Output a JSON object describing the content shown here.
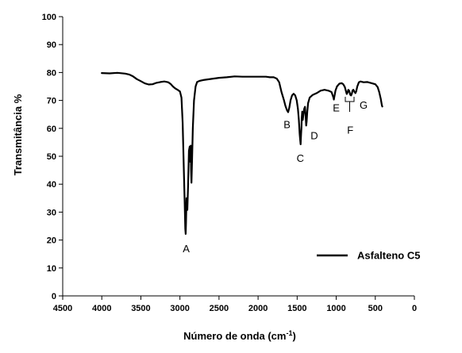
{
  "chart_data": {
    "type": "line",
    "xlabel": "Número de onda (cm",
    "xlabel_sup": "-1",
    "xlabel_end": ")",
    "ylabel": "Transmitância %",
    "xlim": [
      4500,
      0
    ],
    "ylim": [
      0,
      100
    ],
    "x_ticks": [
      "4500",
      "4000",
      "3500",
      "3000",
      "2500",
      "2000",
      "1500",
      "1000",
      "500",
      "0"
    ],
    "x_tick_values": [
      4500,
      4000,
      3500,
      3000,
      2500,
      2000,
      1500,
      1000,
      500,
      0
    ],
    "y_ticks": [
      "0",
      "10",
      "20",
      "30",
      "40",
      "50",
      "60",
      "70",
      "80",
      "90",
      "100"
    ],
    "y_tick_values": [
      0,
      10,
      20,
      30,
      40,
      50,
      60,
      70,
      80,
      90,
      100
    ],
    "series": [
      {
        "name": "Asfalteno C5",
        "color": "#000000",
        "points": [
          [
            4000,
            79.8
          ],
          [
            3900,
            79.7
          ],
          [
            3800,
            79.9
          ],
          [
            3700,
            79.6
          ],
          [
            3650,
            79.3
          ],
          [
            3600,
            78.6
          ],
          [
            3550,
            77.6
          ],
          [
            3500,
            76.9
          ],
          [
            3450,
            76.1
          ],
          [
            3400,
            75.7
          ],
          [
            3350,
            75.8
          ],
          [
            3300,
            76.3
          ],
          [
            3250,
            76.6
          ],
          [
            3200,
            76.8
          ],
          [
            3150,
            76.5
          ],
          [
            3120,
            75.9
          ],
          [
            3090,
            75.0
          ],
          [
            3060,
            74.3
          ],
          [
            3030,
            73.8
          ],
          [
            3000,
            73.2
          ],
          [
            2980,
            71.0
          ],
          [
            2965,
            62.0
          ],
          [
            2950,
            45.0
          ],
          [
            2940,
            34.0
          ],
          [
            2932,
            24.0
          ],
          [
            2927,
            22.2
          ],
          [
            2922,
            26.0
          ],
          [
            2915,
            35.0
          ],
          [
            2910,
            32.0
          ],
          [
            2905,
            30.8
          ],
          [
            2895,
            40.0
          ],
          [
            2885,
            52.0
          ],
          [
            2875,
            53.5
          ],
          [
            2868,
            48.0
          ],
          [
            2862,
            53.8
          ],
          [
            2857,
            45.0
          ],
          [
            2852,
            40.5
          ],
          [
            2845,
            48.0
          ],
          [
            2835,
            60.0
          ],
          [
            2820,
            70.0
          ],
          [
            2800,
            75.0
          ],
          [
            2780,
            76.6
          ],
          [
            2750,
            77.0
          ],
          [
            2700,
            77.3
          ],
          [
            2600,
            77.7
          ],
          [
            2500,
            78.1
          ],
          [
            2400,
            78.3
          ],
          [
            2300,
            78.6
          ],
          [
            2200,
            78.5
          ],
          [
            2100,
            78.5
          ],
          [
            2000,
            78.5
          ],
          [
            1900,
            78.5
          ],
          [
            1850,
            78.3
          ],
          [
            1800,
            78.3
          ],
          [
            1760,
            77.8
          ],
          [
            1730,
            76.5
          ],
          [
            1700,
            73.0
          ],
          [
            1670,
            70.2
          ],
          [
            1650,
            68.0
          ],
          [
            1630,
            66.5
          ],
          [
            1615,
            65.8
          ],
          [
            1600,
            67.5
          ],
          [
            1585,
            70.0
          ],
          [
            1565,
            71.8
          ],
          [
            1545,
            72.4
          ],
          [
            1525,
            71.8
          ],
          [
            1505,
            70.0
          ],
          [
            1490,
            67.0
          ],
          [
            1478,
            63.0
          ],
          [
            1468,
            58.0
          ],
          [
            1462,
            56.0
          ],
          [
            1456,
            54.3
          ],
          [
            1450,
            58.0
          ],
          [
            1445,
            60.0
          ],
          [
            1440,
            64.0
          ],
          [
            1435,
            66.0
          ],
          [
            1428,
            63.0
          ],
          [
            1420,
            64.8
          ],
          [
            1410,
            67.0
          ],
          [
            1400,
            67.7
          ],
          [
            1393,
            65.0
          ],
          [
            1385,
            61.0
          ],
          [
            1378,
            62.5
          ],
          [
            1370,
            66.0
          ],
          [
            1360,
            69.0
          ],
          [
            1340,
            71.0
          ],
          [
            1300,
            72.0
          ],
          [
            1250,
            72.6
          ],
          [
            1200,
            73.5
          ],
          [
            1150,
            73.8
          ],
          [
            1100,
            73.5
          ],
          [
            1060,
            73.0
          ],
          [
            1035,
            71.0
          ],
          [
            1030,
            70.3
          ],
          [
            1025,
            71.2
          ],
          [
            1010,
            73.5
          ],
          [
            990,
            75.0
          ],
          [
            960,
            76.0
          ],
          [
            930,
            76.2
          ],
          [
            910,
            75.8
          ],
          [
            890,
            74.8
          ],
          [
            875,
            73.2
          ],
          [
            865,
            72.3
          ],
          [
            855,
            72.8
          ],
          [
            845,
            73.8
          ],
          [
            835,
            73.5
          ],
          [
            820,
            72.0
          ],
          [
            810,
            71.8
          ],
          [
            800,
            72.4
          ],
          [
            790,
            73.6
          ],
          [
            780,
            73.8
          ],
          [
            765,
            73.0
          ],
          [
            755,
            72.6
          ],
          [
            745,
            73.2
          ],
          [
            730,
            75.0
          ],
          [
            710,
            76.5
          ],
          [
            690,
            76.8
          ],
          [
            650,
            76.5
          ],
          [
            600,
            76.6
          ],
          [
            550,
            76.2
          ],
          [
            500,
            75.8
          ],
          [
            470,
            74.8
          ],
          [
            450,
            73.0
          ],
          [
            430,
            70.5
          ],
          [
            415,
            68.2
          ],
          [
            410,
            67.8
          ]
        ]
      }
    ],
    "annotations": [
      {
        "text": "A",
        "x": 2920,
        "y": 17.0
      },
      {
        "text": "B",
        "x": 1630,
        "y": 61.5
      },
      {
        "text": "C",
        "x": 1460,
        "y": 49.5
      },
      {
        "text": "D",
        "x": 1280,
        "y": 57.5
      },
      {
        "text": "E",
        "x": 1000,
        "y": 67.5
      },
      {
        "text": "F",
        "x": 820,
        "y": 59.5
      },
      {
        "text": "G",
        "x": 650,
        "y": 68.5
      }
    ],
    "legend_position": "bottom-right",
    "grid": false
  }
}
